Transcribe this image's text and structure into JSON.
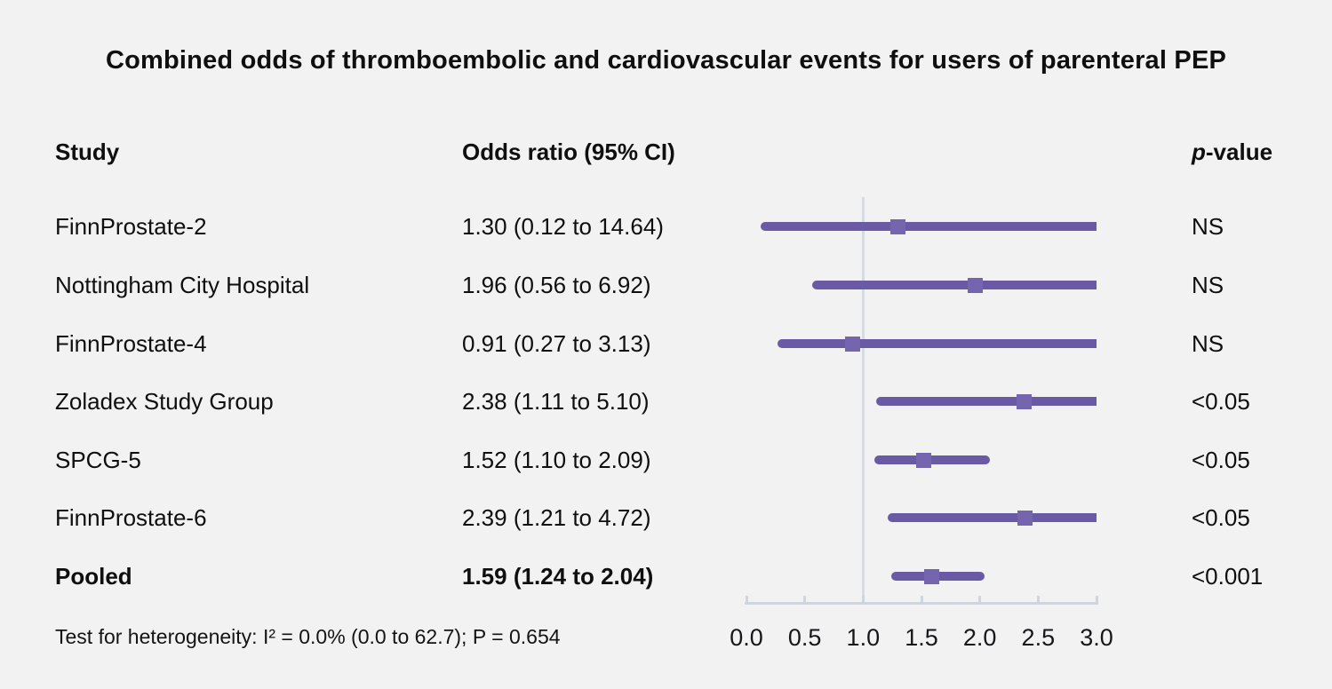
{
  "columns": {
    "study": "Study",
    "odds_ratio": "Odds ratio (95% CI)",
    "p_italic": "p",
    "p_rest": "-value"
  },
  "chart_data": {
    "type": "forest",
    "title": "Combined odds of thromboembolic and cardiovascular events for users of parenteral PEP",
    "xlim": [
      0,
      3
    ],
    "reference_line": 1.0,
    "x_tick_values": [
      0,
      0.5,
      1,
      1.5,
      2,
      2.5,
      3
    ],
    "x_tick_labels": [
      "0.0",
      "0.5",
      "1.0",
      "1.5",
      "2.0",
      "2.5",
      "3.0"
    ],
    "clip_max": 3.0,
    "grid": false,
    "studies": [
      {
        "name": "FinnProstate-2",
        "or": 1.3,
        "ci_low": 0.12,
        "ci_high": 14.64,
        "or_label": "1.30 (0.12 to 14.64)",
        "p_label": "NS",
        "emphasis": false
      },
      {
        "name": "Nottingham City Hospital",
        "or": 1.96,
        "ci_low": 0.56,
        "ci_high": 6.92,
        "or_label": "1.96 (0.56 to 6.92)",
        "p_label": "NS",
        "emphasis": false
      },
      {
        "name": "FinnProstate-4",
        "or": 0.91,
        "ci_low": 0.27,
        "ci_high": 3.13,
        "or_label": "0.91 (0.27 to 3.13)",
        "p_label": "NS",
        "emphasis": false
      },
      {
        "name": "Zoladex Study Group",
        "or": 2.38,
        "ci_low": 1.11,
        "ci_high": 5.1,
        "or_label": "2.38 (1.11 to 5.10)",
        "p_label": "<0.05",
        "emphasis": false
      },
      {
        "name": "SPCG-5",
        "or": 1.52,
        "ci_low": 1.1,
        "ci_high": 2.09,
        "or_label": "1.52 (1.10 to 2.09)",
        "p_label": "<0.05",
        "emphasis": false
      },
      {
        "name": "FinnProstate-6",
        "or": 2.39,
        "ci_low": 1.21,
        "ci_high": 4.72,
        "or_label": "2.39 (1.21 to 4.72)",
        "p_label": "<0.05",
        "emphasis": false
      },
      {
        "name": "Pooled",
        "or": 1.59,
        "ci_low": 1.24,
        "ci_high": 2.04,
        "or_label": "1.59 (1.24 to 2.04)",
        "p_label": "<0.001",
        "emphasis": true
      }
    ],
    "heterogeneity_note": "Test for heterogeneity: I² = 0.0% (0.0 to 62.7); P = 0.654",
    "colors": {
      "background": "#f2f2f2",
      "ci_line": "#6a59a5",
      "marker": "#7565af",
      "reference_line": "#d6dbe1",
      "axis": "#cfd5dc",
      "text": "#0f0f0f"
    }
  }
}
